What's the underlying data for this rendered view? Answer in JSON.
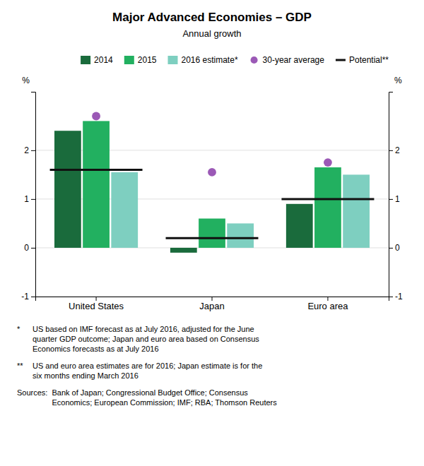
{
  "chart_data": {
    "type": "bar",
    "title": "Major Advanced Economies – GDP",
    "subtitle": "Annual growth",
    "ylabel": "%",
    "y2label": "%",
    "categories": [
      "United States",
      "Japan",
      "Euro area"
    ],
    "series": [
      {
        "name": "2014",
        "color": "#1a6b3c",
        "values": [
          2.4,
          -0.1,
          0.9
        ]
      },
      {
        "name": "2015",
        "color": "#22b060",
        "values": [
          2.6,
          0.6,
          1.65
        ]
      },
      {
        "name": "2016 estimate*",
        "color": "#7ecfc0",
        "values": [
          1.55,
          0.5,
          1.5
        ]
      },
      {
        "name": "30-year average",
        "type": "scatter",
        "marker": "circle",
        "color": "#9b59b6",
        "values": [
          2.7,
          1.55,
          1.75
        ]
      },
      {
        "name": "Potential**",
        "type": "hline",
        "line_style": "solid",
        "color": "#111111",
        "values": [
          1.6,
          0.2,
          1.0
        ]
      }
    ],
    "ylim": [
      -1,
      3.2
    ],
    "yticks": [
      -1,
      0,
      1,
      2
    ],
    "y2lim": [
      -1,
      3.2
    ],
    "y2ticks": [
      -1,
      0,
      1,
      2
    ],
    "grid": true,
    "legend": "upper right",
    "annotations": [
      {
        "label": "*",
        "text": "US based on IMF forecast as at July 2016, adjusted for the June\nquarter GDP outcome; Japan and euro area based on Consensus\nEconomics forecasts as at July 2016"
      },
      {
        "label": "**",
        "text": "US and euro area estimates are for 2016; Japan estimate is for the\nsix months ending March 2016"
      },
      {
        "label": "Sources:",
        "text": "Bank of Japan; Congressional Budget Office; Consensus\nEconomics; European Commission; IMF; RBA; Thomson Reuters"
      }
    ]
  }
}
